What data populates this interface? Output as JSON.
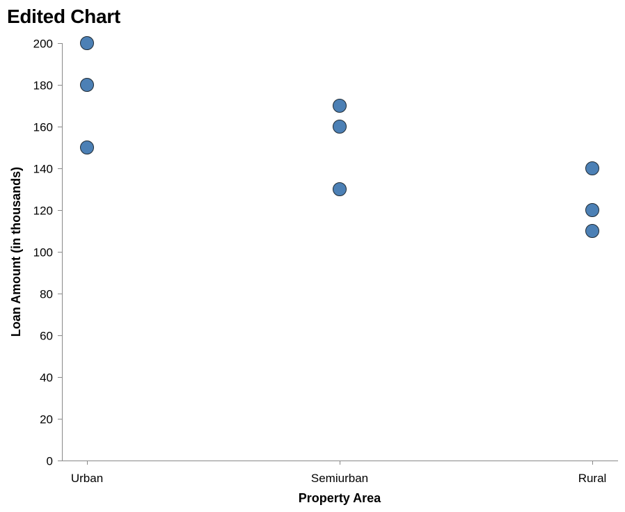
{
  "chart_data": {
    "type": "scatter",
    "title": "Edited Chart",
    "xlabel": "Property Area",
    "ylabel": "Loan Amount (in thousands)",
    "categories": [
      "Urban",
      "Semiurban",
      "Rural"
    ],
    "ylim": [
      0,
      200
    ],
    "yticks": [
      0,
      20,
      40,
      60,
      80,
      100,
      120,
      140,
      160,
      180,
      200
    ],
    "grid": false,
    "point_color": "#4c80b5",
    "points": [
      {
        "x": "Urban",
        "y": 200
      },
      {
        "x": "Urban",
        "y": 180
      },
      {
        "x": "Urban",
        "y": 150
      },
      {
        "x": "Semiurban",
        "y": 170
      },
      {
        "x": "Semiurban",
        "y": 160
      },
      {
        "x": "Semiurban",
        "y": 130
      },
      {
        "x": "Rural",
        "y": 140
      },
      {
        "x": "Rural",
        "y": 120
      },
      {
        "x": "Rural",
        "y": 110
      }
    ]
  }
}
